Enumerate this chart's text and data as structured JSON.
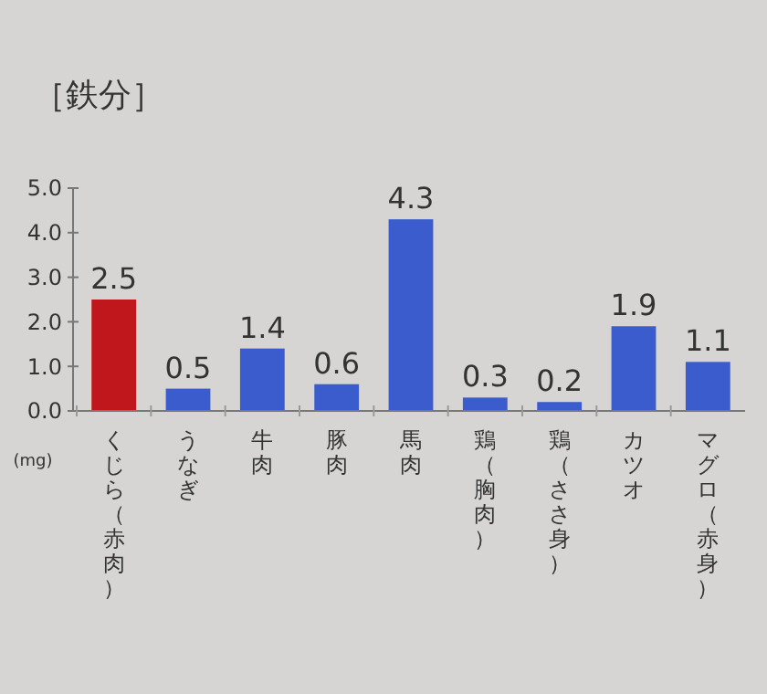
{
  "chart_data": {
    "type": "bar",
    "title": "［鉄分］",
    "ylabel": "(mg)",
    "categories": [
      "くじら（赤肉）",
      "うなぎ",
      "牛肉",
      "豚肉",
      "馬肉",
      "鶏（胸肉）",
      "鶏（ささ身）",
      "カツオ",
      "マグロ（赤身）"
    ],
    "values": [
      2.5,
      0.5,
      1.4,
      0.6,
      4.3,
      0.3,
      0.2,
      1.9,
      1.1
    ],
    "colors": [
      "#c0171c",
      "#3a5ccc",
      "#3a5ccc",
      "#3a5ccc",
      "#3a5ccc",
      "#3a5ccc",
      "#3a5ccc",
      "#3a5ccc",
      "#3a5ccc"
    ],
    "ylim": [
      0,
      5
    ],
    "yticks": [
      {
        "value": 0,
        "label": "0.0"
      },
      {
        "value": 1,
        "label": "1.0"
      },
      {
        "value": 2,
        "label": "2.0"
      },
      {
        "value": 3,
        "label": "3.0"
      },
      {
        "value": 4,
        "label": "4.0"
      },
      {
        "value": 5,
        "label": "5.0"
      }
    ],
    "data_labels": true,
    "grid": false
  }
}
